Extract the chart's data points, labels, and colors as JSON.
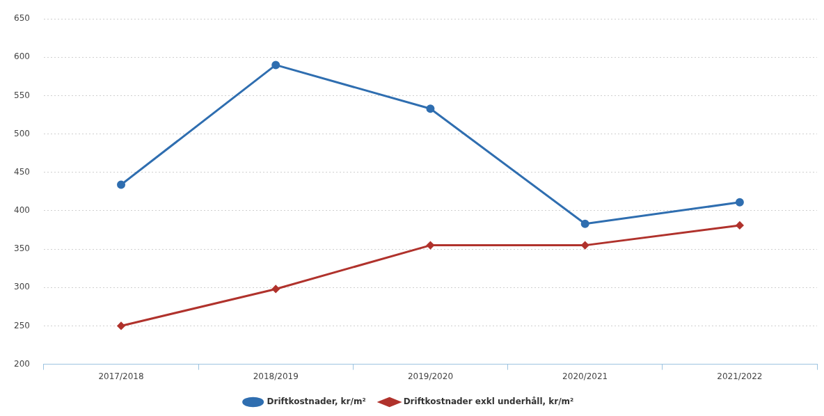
{
  "chart_data": {
    "type": "line",
    "categories": [
      "2017/2018",
      "2018/2019",
      "2019/2020",
      "2020/2021",
      "2021/2022"
    ],
    "series": [
      {
        "name": "Driftkostnader, kr/m²",
        "color": "#2f6eb0",
        "marker": "circle",
        "values": [
          434,
          590,
          533,
          383,
          411
        ]
      },
      {
        "name": "Driftkostnader exkl underhåll, kr/m²",
        "color": "#b0322c",
        "marker": "diamond",
        "values": [
          250,
          298,
          355,
          355,
          381
        ]
      }
    ],
    "ylim": [
      200,
      650
    ],
    "yticks": [
      200,
      250,
      300,
      350,
      400,
      450,
      500,
      550,
      600,
      650
    ],
    "grid": "y",
    "legend": "bottom",
    "line_style": "solid"
  }
}
